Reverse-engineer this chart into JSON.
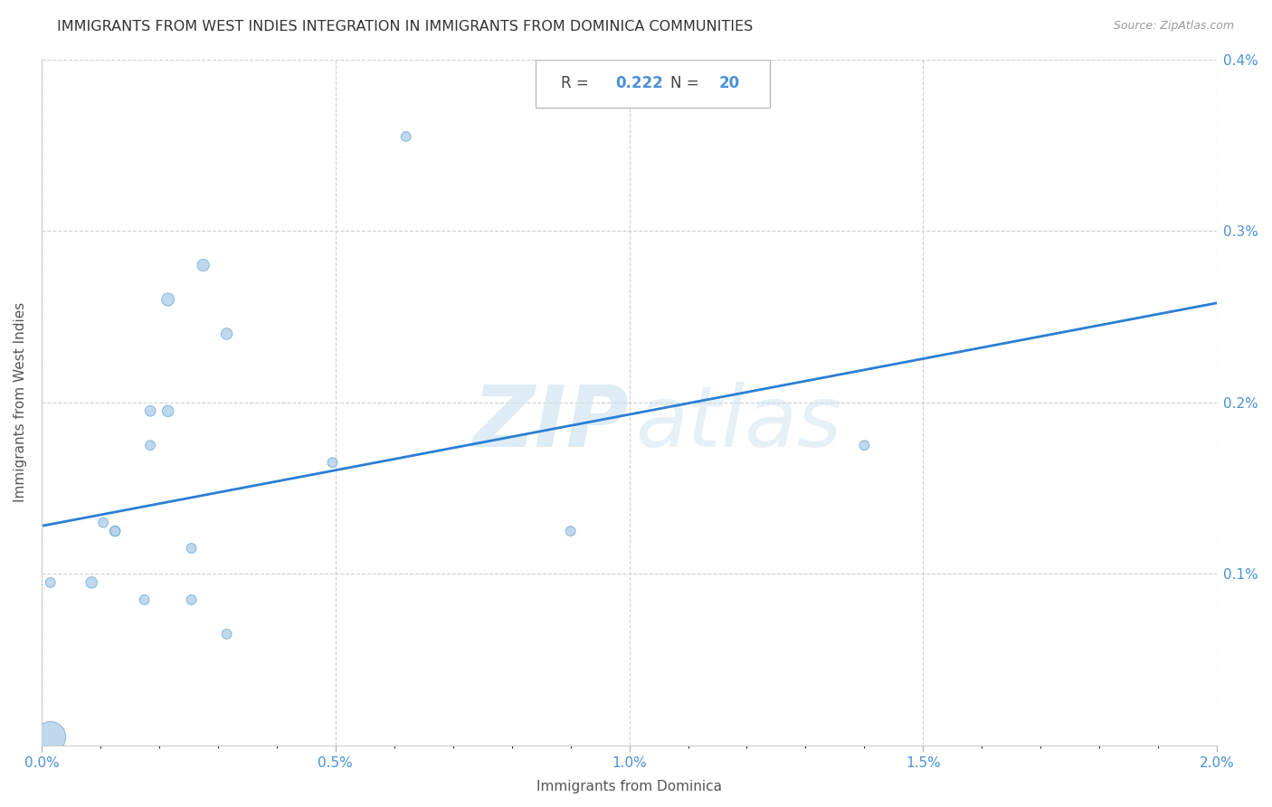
{
  "title": "IMMIGRANTS FROM WEST INDIES INTEGRATION IN IMMIGRANTS FROM DOMINICA COMMUNITIES",
  "source": "Source: ZipAtlas.com",
  "xlabel": "Immigrants from Dominica",
  "ylabel": "Immigrants from West Indies",
  "R": "0.222",
  "N": "20",
  "xlim": [
    0.0,
    0.02
  ],
  "ylim": [
    0.0,
    0.004
  ],
  "xtick_labels": [
    "0.0%",
    "",
    "",
    "",
    "",
    "0.5%",
    "",
    "",
    "",
    "",
    "1.0%",
    "",
    "",
    "",
    "",
    "1.5%",
    "",
    "",
    "",
    "",
    "2.0%"
  ],
  "xtick_values": [
    0.0,
    0.001,
    0.002,
    0.003,
    0.004,
    0.005,
    0.006,
    0.007,
    0.008,
    0.009,
    0.01,
    0.011,
    0.012,
    0.013,
    0.014,
    0.015,
    0.016,
    0.017,
    0.018,
    0.019,
    0.02
  ],
  "xtick_major_labels": [
    "0.0%",
    "0.5%",
    "1.0%",
    "1.5%",
    "2.0%"
  ],
  "xtick_major_values": [
    0.0,
    0.005,
    0.01,
    0.015,
    0.02
  ],
  "ytick_labels": [
    "0.1%",
    "0.2%",
    "0.3%",
    "0.4%"
  ],
  "ytick_values": [
    0.001,
    0.002,
    0.003,
    0.004
  ],
  "scatter_x": [
    0.00015,
    0.00015,
    0.00085,
    0.00105,
    0.00125,
    0.00125,
    0.00175,
    0.00185,
    0.00185,
    0.00215,
    0.00215,
    0.00255,
    0.00255,
    0.00275,
    0.00315,
    0.00315,
    0.00495,
    0.0062,
    0.014,
    0.009
  ],
  "scatter_y": [
    5e-05,
    0.00095,
    0.00095,
    0.0013,
    0.00125,
    0.00125,
    0.00085,
    0.00175,
    0.00195,
    0.00195,
    0.0026,
    0.00115,
    0.00085,
    0.0028,
    0.0024,
    0.00065,
    0.00165,
    0.00355,
    0.00175,
    0.00125
  ],
  "scatter_sizes": [
    600,
    60,
    80,
    60,
    70,
    60,
    60,
    60,
    70,
    80,
    100,
    60,
    60,
    90,
    80,
    60,
    60,
    60,
    60,
    60
  ],
  "point_color": "#b8d4ec",
  "point_edgecolor": "#7ab0d8",
  "line_color": "#2b7fd4",
  "regression_x0": 0.0,
  "regression_y0": 0.00128,
  "regression_x1": 0.02,
  "regression_y1": 0.00258,
  "watermark_zip": "ZIP",
  "watermark_atlas": "atlas",
  "background_color": "#ffffff",
  "grid_color": "#d0d0d0",
  "grid_linestyle": "--",
  "title_fontsize": 11.5,
  "source_fontsize": 9,
  "axis_label_fontsize": 11,
  "tick_fontsize": 11
}
